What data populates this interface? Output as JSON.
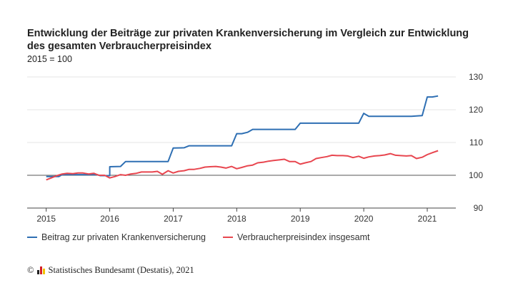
{
  "header": {
    "title": "Entwicklung der Beiträge zur privaten Krankenversicherung im Vergleich zur Entwicklung des gesamten Verbraucherpreisindex",
    "subtitle": "2015 = 100"
  },
  "footer": {
    "copyright_symbol": "©",
    "source": "Statistisches Bundesamt (Destatis), 2021"
  },
  "colors": {
    "series1": "#2e6fb3",
    "series2": "#e8464f",
    "baseline": "#555555",
    "grid": "#e6e6e6",
    "logo": [
      "#222222",
      "#d21f26",
      "#f2c200"
    ]
  },
  "chart_data": {
    "type": "line",
    "title": "Entwicklung der Beiträge zur privaten Krankenversicherung im Vergleich zur Entwicklung des gesamten Verbraucherpreisindex",
    "subtitle": "2015 = 100",
    "xlabel": "",
    "ylabel": "",
    "xlim": [
      2014.7,
      2021.45
    ],
    "ylim": [
      90,
      130
    ],
    "x_ticks": [
      2015,
      2016,
      2017,
      2018,
      2019,
      2020,
      2021
    ],
    "y_ticks": [
      90,
      100,
      110,
      120,
      130
    ],
    "y_axis_position": "right",
    "grid": true,
    "baseline": 100,
    "legend_position": "bottom-left",
    "series": [
      {
        "name": "Beitrag zur privaten Krankenversicherung",
        "points": [
          [
            2015.0,
            99.6
          ],
          [
            2015.2,
            99.6
          ],
          [
            2015.25,
            100.2
          ],
          [
            2015.8,
            100.2
          ],
          [
            2015.85,
            99.9
          ],
          [
            2016.0,
            99.9
          ],
          [
            2016.0,
            102.6
          ],
          [
            2016.17,
            102.7
          ],
          [
            2016.25,
            104.2
          ],
          [
            2016.92,
            104.2
          ],
          [
            2017.0,
            108.3
          ],
          [
            2017.17,
            108.4
          ],
          [
            2017.25,
            109.0
          ],
          [
            2017.92,
            109.0
          ],
          [
            2018.0,
            112.7
          ],
          [
            2018.08,
            112.7
          ],
          [
            2018.17,
            113.1
          ],
          [
            2018.25,
            114.0
          ],
          [
            2018.92,
            114.0
          ],
          [
            2019.0,
            115.9
          ],
          [
            2019.92,
            115.9
          ],
          [
            2020.0,
            118.9
          ],
          [
            2020.08,
            118.0
          ],
          [
            2020.75,
            118.0
          ],
          [
            2020.83,
            118.1
          ],
          [
            2020.92,
            118.2
          ],
          [
            2021.0,
            123.9
          ],
          [
            2021.08,
            123.9
          ],
          [
            2021.17,
            124.2
          ]
        ]
      },
      {
        "name": "Verbraucherpreisindex insgesamt",
        "points": [
          [
            2015.0,
            98.6
          ],
          [
            2015.08,
            99.2
          ],
          [
            2015.17,
            99.9
          ],
          [
            2015.25,
            100.4
          ],
          [
            2015.33,
            100.6
          ],
          [
            2015.42,
            100.5
          ],
          [
            2015.5,
            100.7
          ],
          [
            2015.58,
            100.7
          ],
          [
            2015.67,
            100.4
          ],
          [
            2015.75,
            100.6
          ],
          [
            2015.83,
            100.0
          ],
          [
            2015.92,
            100.0
          ],
          [
            2016.0,
            99.2
          ],
          [
            2016.08,
            99.6
          ],
          [
            2016.17,
            100.2
          ],
          [
            2016.25,
            100.0
          ],
          [
            2016.33,
            100.4
          ],
          [
            2016.42,
            100.6
          ],
          [
            2016.5,
            101.0
          ],
          [
            2016.58,
            101.0
          ],
          [
            2016.67,
            101.0
          ],
          [
            2016.75,
            101.2
          ],
          [
            2016.83,
            100.3
          ],
          [
            2016.92,
            101.4
          ],
          [
            2017.0,
            100.7
          ],
          [
            2017.08,
            101.2
          ],
          [
            2017.17,
            101.4
          ],
          [
            2017.25,
            101.8
          ],
          [
            2017.33,
            101.8
          ],
          [
            2017.42,
            102.1
          ],
          [
            2017.5,
            102.5
          ],
          [
            2017.58,
            102.6
          ],
          [
            2017.67,
            102.7
          ],
          [
            2017.75,
            102.5
          ],
          [
            2017.83,
            102.2
          ],
          [
            2017.92,
            102.7
          ],
          [
            2018.0,
            102.0
          ],
          [
            2018.08,
            102.4
          ],
          [
            2018.17,
            102.9
          ],
          [
            2018.25,
            103.1
          ],
          [
            2018.33,
            103.8
          ],
          [
            2018.42,
            104.0
          ],
          [
            2018.5,
            104.3
          ],
          [
            2018.58,
            104.5
          ],
          [
            2018.67,
            104.7
          ],
          [
            2018.75,
            104.9
          ],
          [
            2018.83,
            104.2
          ],
          [
            2018.92,
            104.2
          ],
          [
            2019.0,
            103.4
          ],
          [
            2019.08,
            103.8
          ],
          [
            2019.17,
            104.2
          ],
          [
            2019.25,
            105.1
          ],
          [
            2019.33,
            105.4
          ],
          [
            2019.42,
            105.7
          ],
          [
            2019.5,
            106.1
          ],
          [
            2019.58,
            106.0
          ],
          [
            2019.67,
            106.0
          ],
          [
            2019.75,
            105.9
          ],
          [
            2019.83,
            105.4
          ],
          [
            2019.92,
            105.8
          ],
          [
            2020.0,
            105.2
          ],
          [
            2020.08,
            105.6
          ],
          [
            2020.17,
            105.9
          ],
          [
            2020.25,
            106.0
          ],
          [
            2020.33,
            106.2
          ],
          [
            2020.42,
            106.6
          ],
          [
            2020.5,
            106.1
          ],
          [
            2020.58,
            106.0
          ],
          [
            2020.67,
            105.9
          ],
          [
            2020.75,
            106.0
          ],
          [
            2020.83,
            105.1
          ],
          [
            2020.92,
            105.5
          ],
          [
            2021.0,
            106.3
          ],
          [
            2021.08,
            106.9
          ],
          [
            2021.17,
            107.5
          ]
        ]
      }
    ]
  }
}
